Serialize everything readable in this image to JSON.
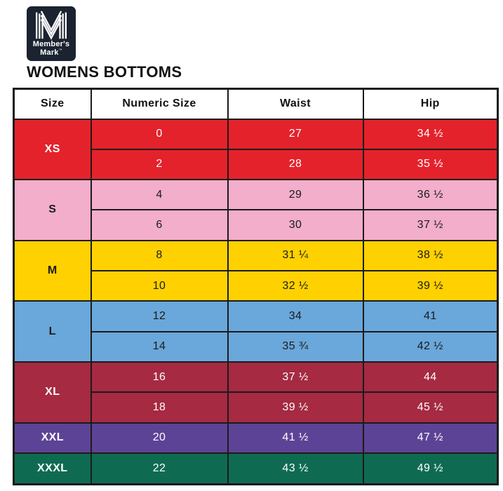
{
  "brand": {
    "line1": "Member's",
    "line2": "Mark",
    "tm": "™",
    "logo_bg": "#1b2330",
    "logo_fg": "#ffffff"
  },
  "title": "WOMENS BOTTOMS",
  "table": {
    "headers": [
      "Size",
      "Numeric Size",
      "Waist",
      "Hip"
    ],
    "header_bg": "#ffffff",
    "header_text": "#111111",
    "border_color": "#1b1b1b",
    "groups": [
      {
        "size": "XS",
        "bg": "#e4222b",
        "text": "#ffffff",
        "rows": [
          [
            "0",
            "27",
            "34 ½"
          ],
          [
            "2",
            "28",
            "35 ½"
          ]
        ]
      },
      {
        "size": "S",
        "bg": "#f2aecb",
        "text": "#1a1a1a",
        "rows": [
          [
            "4",
            "29",
            "36 ½"
          ],
          [
            "6",
            "30",
            "37 ½"
          ]
        ]
      },
      {
        "size": "M",
        "bg": "#ffd100",
        "text": "#1a1a1a",
        "rows": [
          [
            "8",
            "31 ¼",
            "38 ½"
          ],
          [
            "10",
            "32 ½",
            "39 ½"
          ]
        ]
      },
      {
        "size": "L",
        "bg": "#6aa7da",
        "text": "#1a1a1a",
        "rows": [
          [
            "12",
            "34",
            "41"
          ],
          [
            "14",
            "35 ¾",
            "42 ½"
          ]
        ]
      },
      {
        "size": "XL",
        "bg": "#a52a42",
        "text": "#ffffff",
        "rows": [
          [
            "16",
            "37 ½",
            "44"
          ],
          [
            "18",
            "39 ½",
            "45 ½"
          ]
        ]
      },
      {
        "size": "XXL",
        "bg": "#5d4396",
        "text": "#ffffff",
        "rows": [
          [
            "20",
            "41 ½",
            "47 ½"
          ]
        ]
      },
      {
        "size": "XXXL",
        "bg": "#0e6b52",
        "text": "#ffffff",
        "rows": [
          [
            "22",
            "43 ½",
            "49 ½"
          ]
        ]
      }
    ]
  }
}
